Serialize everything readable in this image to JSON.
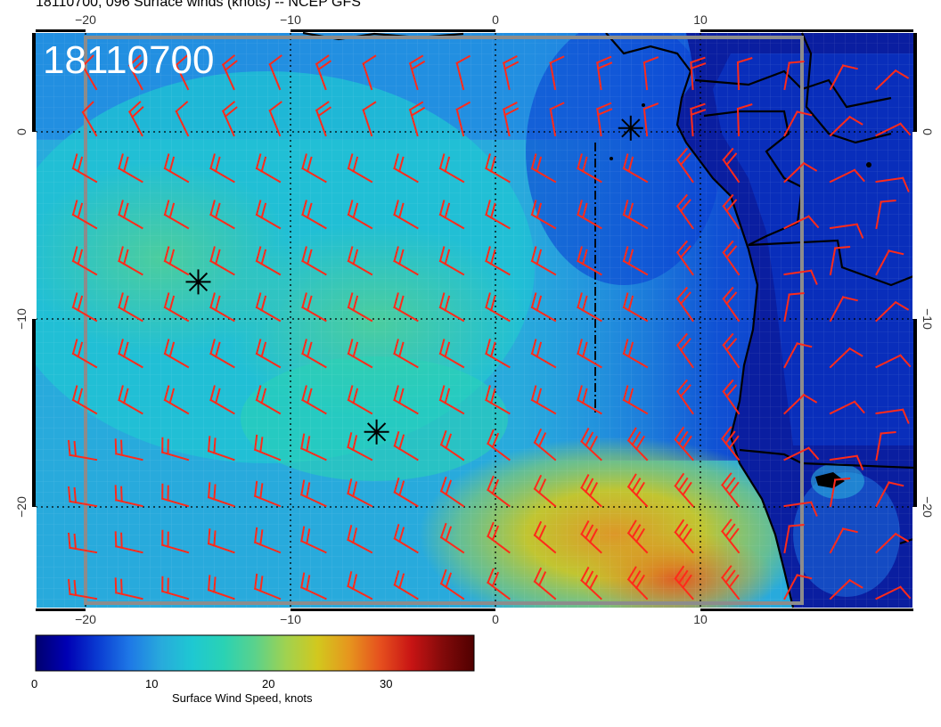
{
  "title": "18110700, 096 Surface winds (knots) -- NCEP GFS",
  "stamp": "18110700",
  "axes": {
    "lon_ticks": [
      "−20",
      "−10",
      "0",
      "10"
    ],
    "lat_ticks": [
      "0",
      "−10",
      "−20"
    ]
  },
  "colorbar": {
    "label": "Surface Wind Speed, knots",
    "ticks": [
      "0",
      "10",
      "20",
      "30"
    ],
    "min": 0,
    "max": 37,
    "colors": [
      "#00006e",
      "#0000b4",
      "#0a3cd2",
      "#1e78e6",
      "#28aadc",
      "#1ec8d2",
      "#2ad2b4",
      "#5ad28c",
      "#a0d250",
      "#d2c81e",
      "#e6961e",
      "#e6501e",
      "#c81414",
      "#820a0a",
      "#500000"
    ]
  },
  "markers": [
    {
      "name": "storm-marker-1",
      "lon": -14.5,
      "lat": -8
    },
    {
      "name": "storm-marker-2",
      "lon": -5.8,
      "lat": -16
    },
    {
      "name": "storm-marker-3",
      "lon": 6.6,
      "lat": 0.2
    }
  ],
  "colors": {
    "barb": "#ff2a1a",
    "coast": "#000000",
    "grid": "#000000",
    "frame": "#888888"
  }
}
